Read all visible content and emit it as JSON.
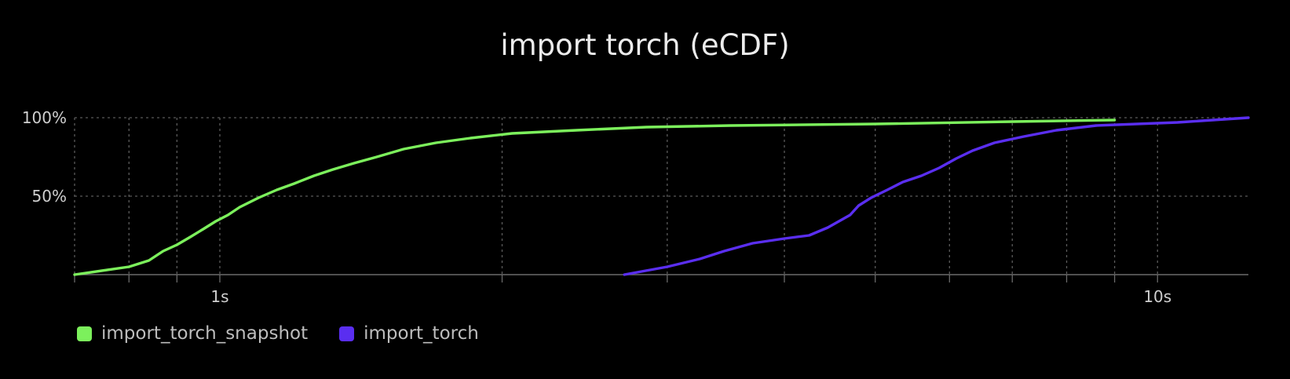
{
  "chart_data": {
    "type": "line",
    "title": "import torch (eCDF)",
    "xscale": "log",
    "xlim": [
      0.7,
      12.5
    ],
    "ylim": [
      0,
      100
    ],
    "x_ticks": [
      {
        "value": 1,
        "label": "1s"
      },
      {
        "value": 10,
        "label": "10s"
      }
    ],
    "y_ticks": [
      {
        "value": 50,
        "label": "50%"
      },
      {
        "value": 100,
        "label": "100%"
      }
    ],
    "x_grid": [
      0.7,
      0.8,
      0.9,
      1,
      2,
      3,
      4,
      5,
      6,
      7,
      8,
      9,
      10
    ],
    "grid": true,
    "legend_position": "bottom-left",
    "series": [
      {
        "name": "import_torch_snapshot",
        "color": "#7cf05c",
        "points": [
          [
            0.7,
            0
          ],
          [
            0.8,
            5
          ],
          [
            0.84,
            9
          ],
          [
            0.87,
            15
          ],
          [
            0.9,
            19
          ],
          [
            0.93,
            24
          ],
          [
            0.96,
            29
          ],
          [
            0.99,
            34
          ],
          [
            1.02,
            38
          ],
          [
            1.05,
            43
          ],
          [
            1.1,
            49
          ],
          [
            1.15,
            54
          ],
          [
            1.2,
            58
          ],
          [
            1.26,
            63
          ],
          [
            1.32,
            67
          ],
          [
            1.39,
            71
          ],
          [
            1.47,
            75
          ],
          [
            1.57,
            80
          ],
          [
            1.7,
            84
          ],
          [
            1.85,
            87
          ],
          [
            2.05,
            90
          ],
          [
            2.4,
            92
          ],
          [
            2.85,
            94
          ],
          [
            3.5,
            95
          ],
          [
            5,
            96
          ],
          [
            7,
            97.5
          ],
          [
            9,
            98.5
          ]
        ]
      },
      {
        "name": "import_torch",
        "color": "#5a2ef0",
        "points": [
          [
            2.7,
            0
          ],
          [
            3.0,
            5
          ],
          [
            3.25,
            10
          ],
          [
            3.45,
            15
          ],
          [
            3.7,
            20
          ],
          [
            4.0,
            23
          ],
          [
            4.25,
            25
          ],
          [
            4.45,
            30
          ],
          [
            4.7,
            38
          ],
          [
            4.8,
            44
          ],
          [
            4.95,
            49
          ],
          [
            5.15,
            54
          ],
          [
            5.35,
            59
          ],
          [
            5.6,
            63
          ],
          [
            5.85,
            68
          ],
          [
            6.1,
            74
          ],
          [
            6.35,
            79
          ],
          [
            6.7,
            84
          ],
          [
            7.2,
            88
          ],
          [
            7.8,
            92
          ],
          [
            8.6,
            95
          ],
          [
            10.5,
            97
          ],
          [
            12.5,
            100
          ]
        ]
      }
    ]
  }
}
